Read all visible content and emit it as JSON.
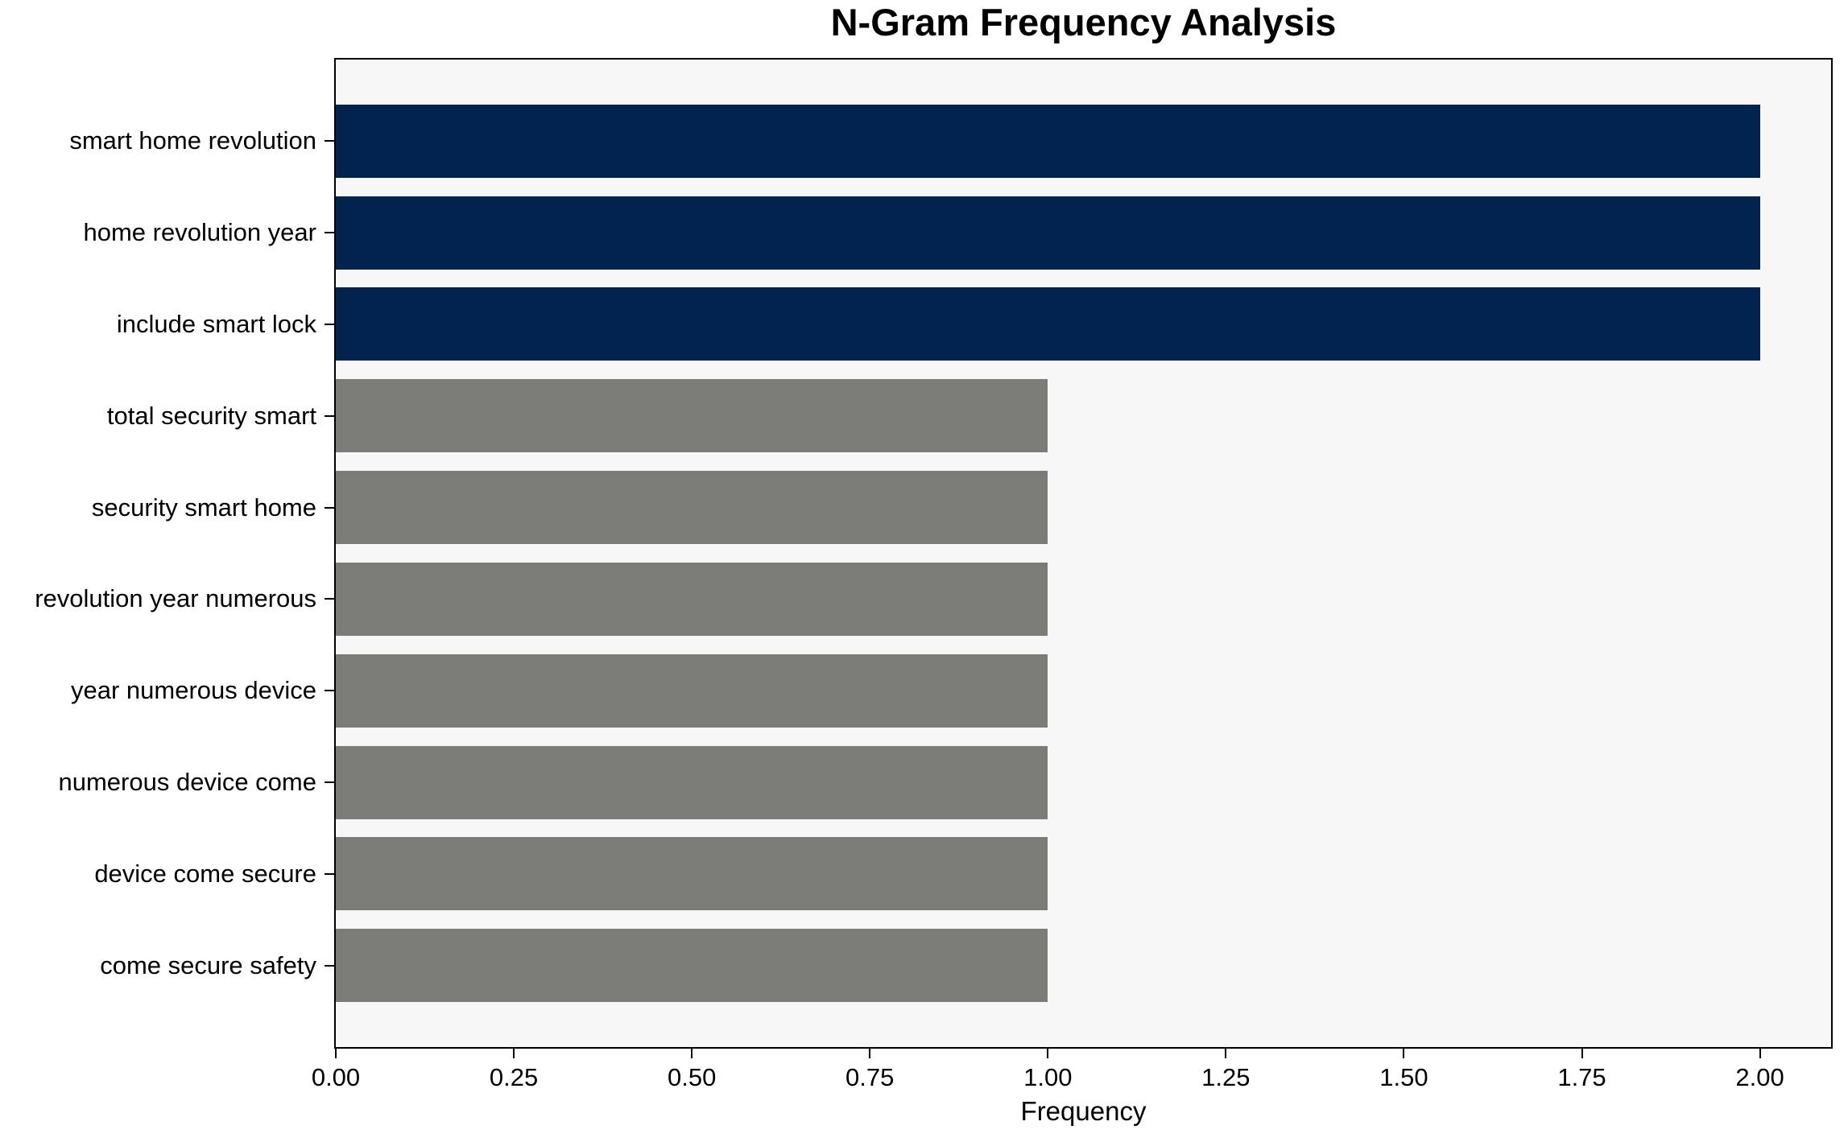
{
  "chart_data": {
    "type": "bar",
    "orientation": "horizontal",
    "title": "N-Gram Frequency Analysis",
    "xlabel": "Frequency",
    "ylabel": "",
    "categories": [
      "smart home revolution",
      "home revolution year",
      "include smart lock",
      "total security smart",
      "security smart home",
      "revolution year numerous",
      "year numerous device",
      "numerous device come",
      "device come secure",
      "come secure safety"
    ],
    "values": [
      2,
      2,
      2,
      1,
      1,
      1,
      1,
      1,
      1,
      1
    ],
    "bar_colors": [
      "#01234d",
      "#01234d",
      "#01234d",
      "#7b7b77",
      "#7b7b77",
      "#7b7b77",
      "#7b7b77",
      "#7b7b77",
      "#7b7b77",
      "#7b7b77"
    ],
    "highlight_color": "#01234d",
    "default_color": "#7b7b77",
    "xlim": [
      0,
      2.1
    ],
    "xticks": [
      0,
      0.25,
      0.5,
      0.75,
      1.0,
      1.25,
      1.5,
      1.75,
      2.0
    ],
    "xtick_labels": [
      "0.00",
      "0.25",
      "0.50",
      "0.75",
      "1.00",
      "1.25",
      "1.50",
      "1.75",
      "2.00"
    ],
    "grid": false,
    "legend": "none",
    "plot_background": "#f7f7f7",
    "spine_color": "#000000"
  }
}
